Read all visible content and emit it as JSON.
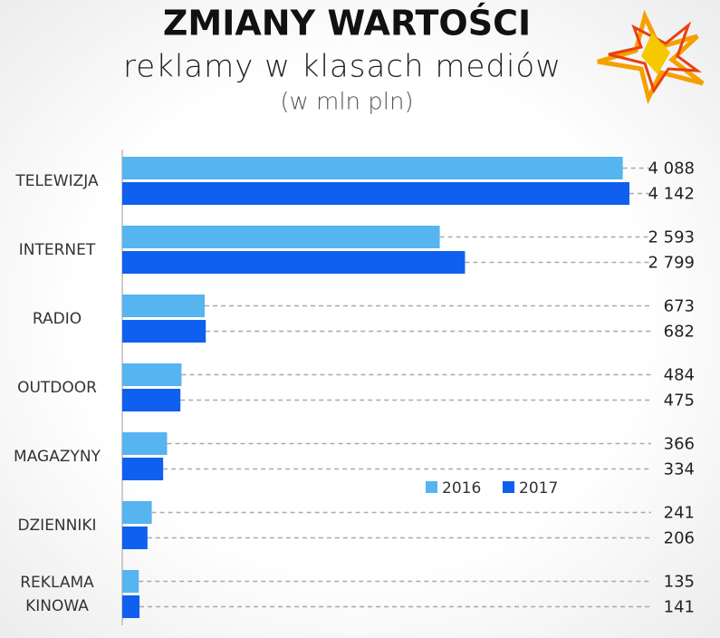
{
  "title": "ZMIANY WARTOŚCI",
  "subtitle": "reklamy w klasach mediów",
  "unit_note": "(w mln pln)",
  "chart_data": {
    "type": "bar",
    "orientation": "horizontal",
    "categories": [
      "TELEWIZJA",
      "INTERNET",
      "RADIO",
      "OUTDOOR",
      "MAGAZYNY",
      "DZIENNIKI",
      "REKLAMA KINOWA"
    ],
    "series": [
      {
        "name": "2016",
        "color": "#56b4f0",
        "values": [
          4088,
          2593,
          673,
          484,
          366,
          241,
          135
        ],
        "value_labels": [
          "4 088",
          "2 593",
          "673",
          "484",
          "366",
          "241",
          "135"
        ]
      },
      {
        "name": "2017",
        "color": "#1060f0",
        "values": [
          4142,
          2799,
          682,
          475,
          334,
          206,
          141
        ],
        "value_labels": [
          "4 142",
          "2 799",
          "682",
          "475",
          "334",
          "206",
          "141"
        ]
      }
    ]
  }
}
